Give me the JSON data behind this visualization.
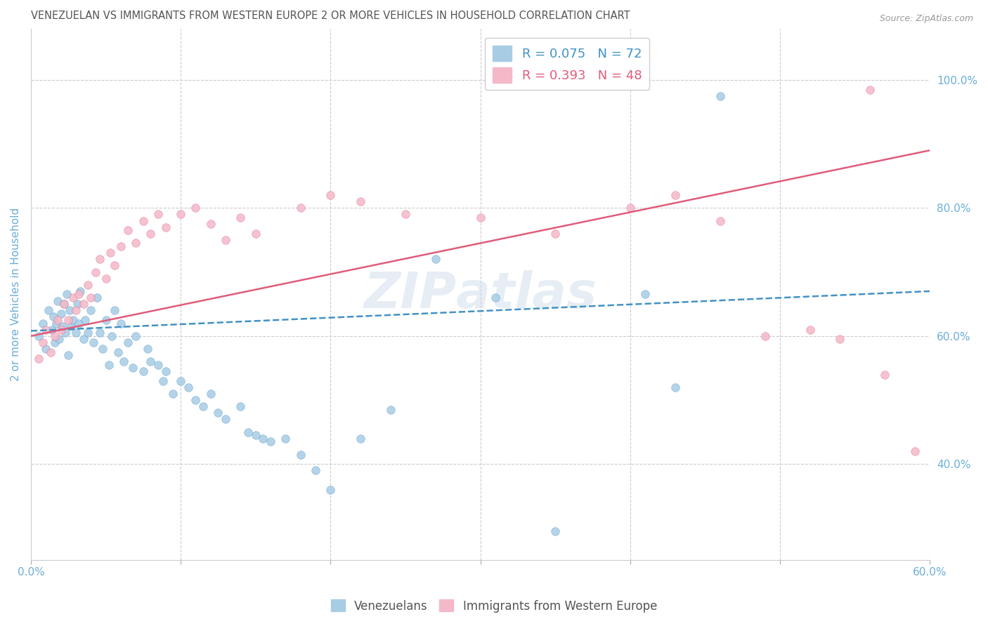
{
  "title": "VENEZUELAN VS IMMIGRANTS FROM WESTERN EUROPE 2 OR MORE VEHICLES IN HOUSEHOLD CORRELATION CHART",
  "source": "Source: ZipAtlas.com",
  "ylabel": "2 or more Vehicles in Household",
  "xlim": [
    0.0,
    0.6
  ],
  "ylim": [
    0.25,
    1.08
  ],
  "ytick_vals": [
    0.4,
    0.6,
    0.8,
    1.0
  ],
  "ytick_labs": [
    "40.0%",
    "60.0%",
    "80.0%",
    "100.0%"
  ],
  "xtick_vals": [
    0.0,
    0.1,
    0.2,
    0.3,
    0.4,
    0.5,
    0.6
  ],
  "xtick_labs": [
    "0.0%",
    "",
    "",
    "",
    "",
    "",
    "60.0%"
  ],
  "legend_R1": "R = 0.075",
  "legend_N1": "N = 72",
  "legend_R2": "R = 0.393",
  "legend_N2": "N = 48",
  "blue_color": "#a8cce4",
  "pink_color": "#f4b8c8",
  "blue_line_color": "#4292c6",
  "pink_line_color": "#e05c7a",
  "title_color": "#555555",
  "axis_label_color": "#6baed6",
  "venezuelan_x": [
    0.005,
    0.008,
    0.01,
    0.012,
    0.014,
    0.015,
    0.016,
    0.017,
    0.018,
    0.019,
    0.02,
    0.021,
    0.022,
    0.023,
    0.024,
    0.025,
    0.026,
    0.027,
    0.028,
    0.03,
    0.031,
    0.032,
    0.033,
    0.035,
    0.036,
    0.038,
    0.04,
    0.042,
    0.044,
    0.046,
    0.048,
    0.05,
    0.052,
    0.054,
    0.056,
    0.058,
    0.06,
    0.062,
    0.065,
    0.068,
    0.07,
    0.075,
    0.078,
    0.08,
    0.085,
    0.088,
    0.09,
    0.095,
    0.1,
    0.105,
    0.11,
    0.115,
    0.12,
    0.125,
    0.13,
    0.14,
    0.145,
    0.15,
    0.155,
    0.16,
    0.17,
    0.18,
    0.19,
    0.2,
    0.22,
    0.24,
    0.27,
    0.31,
    0.35,
    0.41,
    0.43,
    0.46
  ],
  "venezuelan_y": [
    0.6,
    0.62,
    0.58,
    0.64,
    0.61,
    0.63,
    0.59,
    0.62,
    0.655,
    0.595,
    0.635,
    0.615,
    0.65,
    0.605,
    0.665,
    0.57,
    0.64,
    0.615,
    0.625,
    0.605,
    0.65,
    0.62,
    0.67,
    0.595,
    0.625,
    0.605,
    0.64,
    0.59,
    0.66,
    0.605,
    0.58,
    0.625,
    0.555,
    0.6,
    0.64,
    0.575,
    0.62,
    0.56,
    0.59,
    0.55,
    0.6,
    0.545,
    0.58,
    0.56,
    0.555,
    0.53,
    0.545,
    0.51,
    0.53,
    0.52,
    0.5,
    0.49,
    0.51,
    0.48,
    0.47,
    0.49,
    0.45,
    0.445,
    0.44,
    0.435,
    0.44,
    0.415,
    0.39,
    0.36,
    0.44,
    0.485,
    0.72,
    0.66,
    0.295,
    0.665,
    0.52,
    0.975
  ],
  "western_europe_x": [
    0.005,
    0.008,
    0.01,
    0.013,
    0.016,
    0.018,
    0.02,
    0.022,
    0.025,
    0.028,
    0.03,
    0.032,
    0.035,
    0.038,
    0.04,
    0.043,
    0.046,
    0.05,
    0.053,
    0.056,
    0.06,
    0.065,
    0.07,
    0.075,
    0.08,
    0.085,
    0.09,
    0.1,
    0.11,
    0.12,
    0.13,
    0.14,
    0.15,
    0.18,
    0.2,
    0.22,
    0.25,
    0.3,
    0.35,
    0.4,
    0.43,
    0.46,
    0.49,
    0.52,
    0.54,
    0.56,
    0.57,
    0.59
  ],
  "western_europe_y": [
    0.565,
    0.59,
    0.61,
    0.575,
    0.6,
    0.625,
    0.61,
    0.65,
    0.625,
    0.66,
    0.64,
    0.665,
    0.65,
    0.68,
    0.66,
    0.7,
    0.72,
    0.69,
    0.73,
    0.71,
    0.74,
    0.765,
    0.745,
    0.78,
    0.76,
    0.79,
    0.77,
    0.79,
    0.8,
    0.775,
    0.75,
    0.785,
    0.76,
    0.8,
    0.82,
    0.81,
    0.79,
    0.785,
    0.76,
    0.8,
    0.82,
    0.78,
    0.6,
    0.61,
    0.595,
    0.985,
    0.54,
    0.42
  ],
  "blue_trend_x": [
    0.0,
    0.6
  ],
  "blue_trend_y": [
    0.608,
    0.67
  ],
  "pink_trend_x": [
    0.0,
    0.6
  ],
  "pink_trend_y": [
    0.6,
    0.89
  ]
}
